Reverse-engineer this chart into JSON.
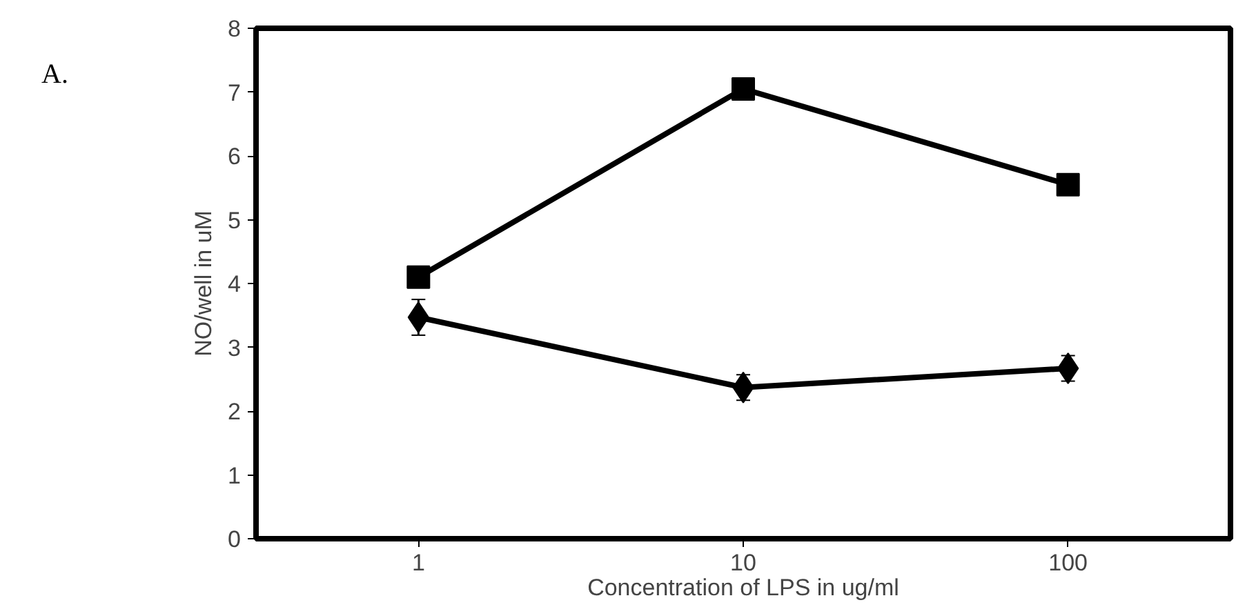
{
  "chart_data": {
    "type": "line",
    "xlabel": "Concentration of LPS in ug/ml",
    "ylabel": "NO/well in uM",
    "annotations": [
      "A."
    ],
    "categories": [
      "1",
      "10",
      "100"
    ],
    "series": [
      {
        "color": "#000000",
        "marker": "square",
        "values": [
          4.1,
          7.05,
          5.55
        ]
      },
      {
        "color": "#000000",
        "marker": "diamond",
        "values": [
          3.47,
          2.37,
          2.67
        ],
        "errors": [
          0.28,
          0.2,
          0.2
        ]
      }
    ],
    "ylim": [
      0,
      8
    ],
    "yticks": [
      0,
      1,
      2,
      3,
      4,
      5,
      6,
      7,
      8
    ],
    "grid": false,
    "line_style": "solid"
  }
}
